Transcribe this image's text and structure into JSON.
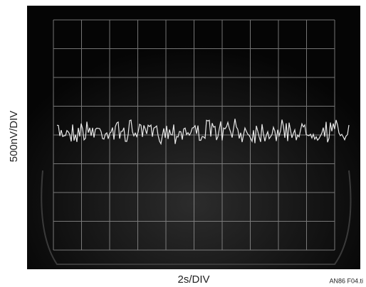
{
  "figure": {
    "y_label": "500nV/DIV",
    "x_label": "2s/DIV",
    "figure_id": "AN86 F04.ti"
  }
}
